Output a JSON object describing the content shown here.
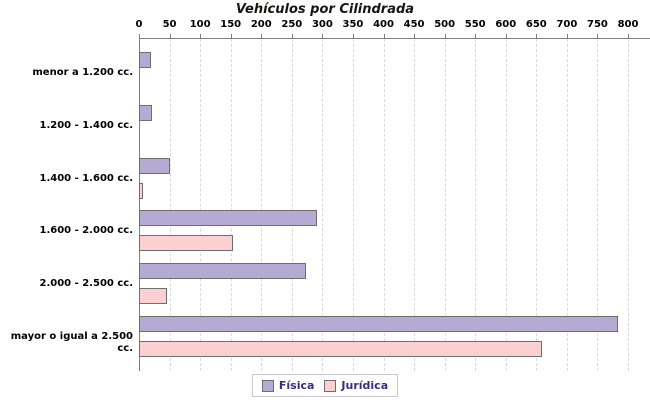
{
  "title": "Vehículos por Cilindrada",
  "chart_data": {
    "type": "bar",
    "orientation": "horizontal",
    "title": "Vehículos por Cilindrada",
    "categories": [
      "menor a 1.200 cc.",
      "1.200 - 1.400 cc.",
      "1.400 - 1.600 cc.",
      "1.600 - 2.000 cc.",
      "2.000 - 2.500 cc.",
      "mayor o igual a 2.500 cc."
    ],
    "series": [
      {
        "name": "Física",
        "color": "#b4aad2",
        "border_color": "#6e6e6e",
        "values": [
          20,
          22,
          50,
          292,
          274,
          784
        ]
      },
      {
        "name": "Jurídica",
        "color": "#fcd0d0",
        "border_color": "#6e6e6e",
        "values": [
          0,
          0,
          7,
          154,
          45,
          659
        ]
      }
    ],
    "xlim": [
      0,
      800
    ],
    "x_ticks": [
      0,
      50,
      100,
      150,
      200,
      250,
      300,
      350,
      400,
      450,
      500,
      550,
      600,
      650,
      700,
      750,
      800
    ],
    "xlabel": "",
    "ylabel": "",
    "grid": "vertical-dashed",
    "gridline_color": "#d9d9d9",
    "axis_color": "#7f7f7f",
    "legend_position": "bottom",
    "legend_text_color": "#3b2d80",
    "title_color": "#181414",
    "background_color": "#ffffff"
  }
}
